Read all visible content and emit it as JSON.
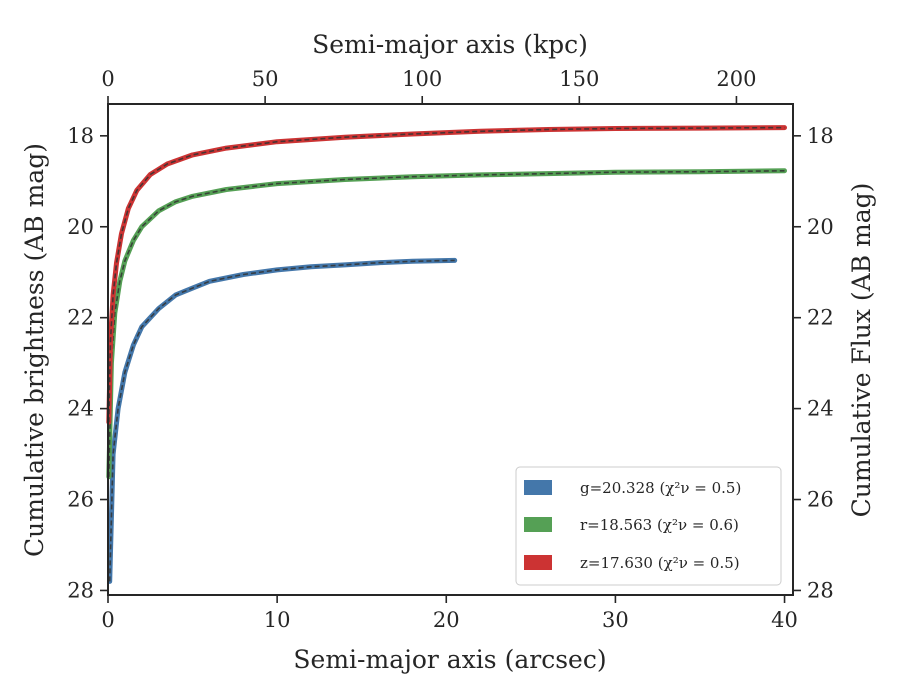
{
  "chart_data": {
    "type": "line",
    "xlabel": "Semi-major axis (arcsec)",
    "ylabel": "Cumulative brightness (AB mag)",
    "x2label": "Semi-major axis (kpc)",
    "y2label": "Cumulative Flux (AB mag)",
    "xlim": [
      0,
      40.5
    ],
    "ylim": [
      28.1,
      17.3
    ],
    "x_ticks": [
      0,
      10,
      20,
      30,
      40
    ],
    "y_ticks": [
      18,
      20,
      22,
      24,
      26,
      28
    ],
    "x2lim": [
      0,
      218
    ],
    "x2_ticks": [
      0,
      50,
      100,
      150,
      200
    ],
    "legend_position": "lower-right",
    "series": [
      {
        "name": "g=20.328",
        "chi_label": "(χ²ν = 0.5)",
        "color": "#4477aa",
        "x": [
          0.1,
          0.3,
          0.6,
          1.0,
          1.5,
          2.0,
          3.0,
          4.0,
          5.0,
          6.0,
          8.0,
          10.0,
          12.0,
          14.0,
          16.0,
          18.0,
          20.5
        ],
        "y": [
          27.8,
          25.0,
          24.0,
          23.2,
          22.6,
          22.2,
          21.8,
          21.5,
          21.35,
          21.2,
          21.05,
          20.95,
          20.88,
          20.84,
          20.79,
          20.76,
          20.74
        ]
      },
      {
        "name": "r=18.563",
        "chi_label": "(χ²ν = 0.6)",
        "color": "#55a055",
        "x": [
          0.05,
          0.2,
          0.4,
          0.7,
          1.0,
          1.5,
          2.0,
          3.0,
          4.0,
          5.0,
          7.0,
          10.0,
          14.0,
          18.0,
          22.0,
          26.0,
          30.0,
          35.0,
          40.0
        ],
        "y": [
          25.5,
          23.0,
          21.9,
          21.2,
          20.75,
          20.3,
          20.0,
          19.65,
          19.45,
          19.33,
          19.18,
          19.05,
          18.96,
          18.9,
          18.86,
          18.83,
          18.8,
          18.79,
          18.77
        ]
      },
      {
        "name": "z=17.630",
        "chi_label": "(χ²ν = 0.5)",
        "color": "#cc3333",
        "x": [
          0.05,
          0.15,
          0.3,
          0.5,
          0.8,
          1.2,
          1.7,
          2.5,
          3.5,
          5.0,
          7.0,
          10.0,
          14.0,
          18.0,
          22.0,
          26.0,
          30.0,
          35.0,
          40.0
        ],
        "y": [
          24.3,
          22.5,
          21.5,
          20.8,
          20.15,
          19.6,
          19.2,
          18.85,
          18.62,
          18.42,
          18.27,
          18.13,
          18.03,
          17.96,
          17.9,
          17.86,
          17.84,
          17.83,
          17.82
        ]
      }
    ]
  }
}
